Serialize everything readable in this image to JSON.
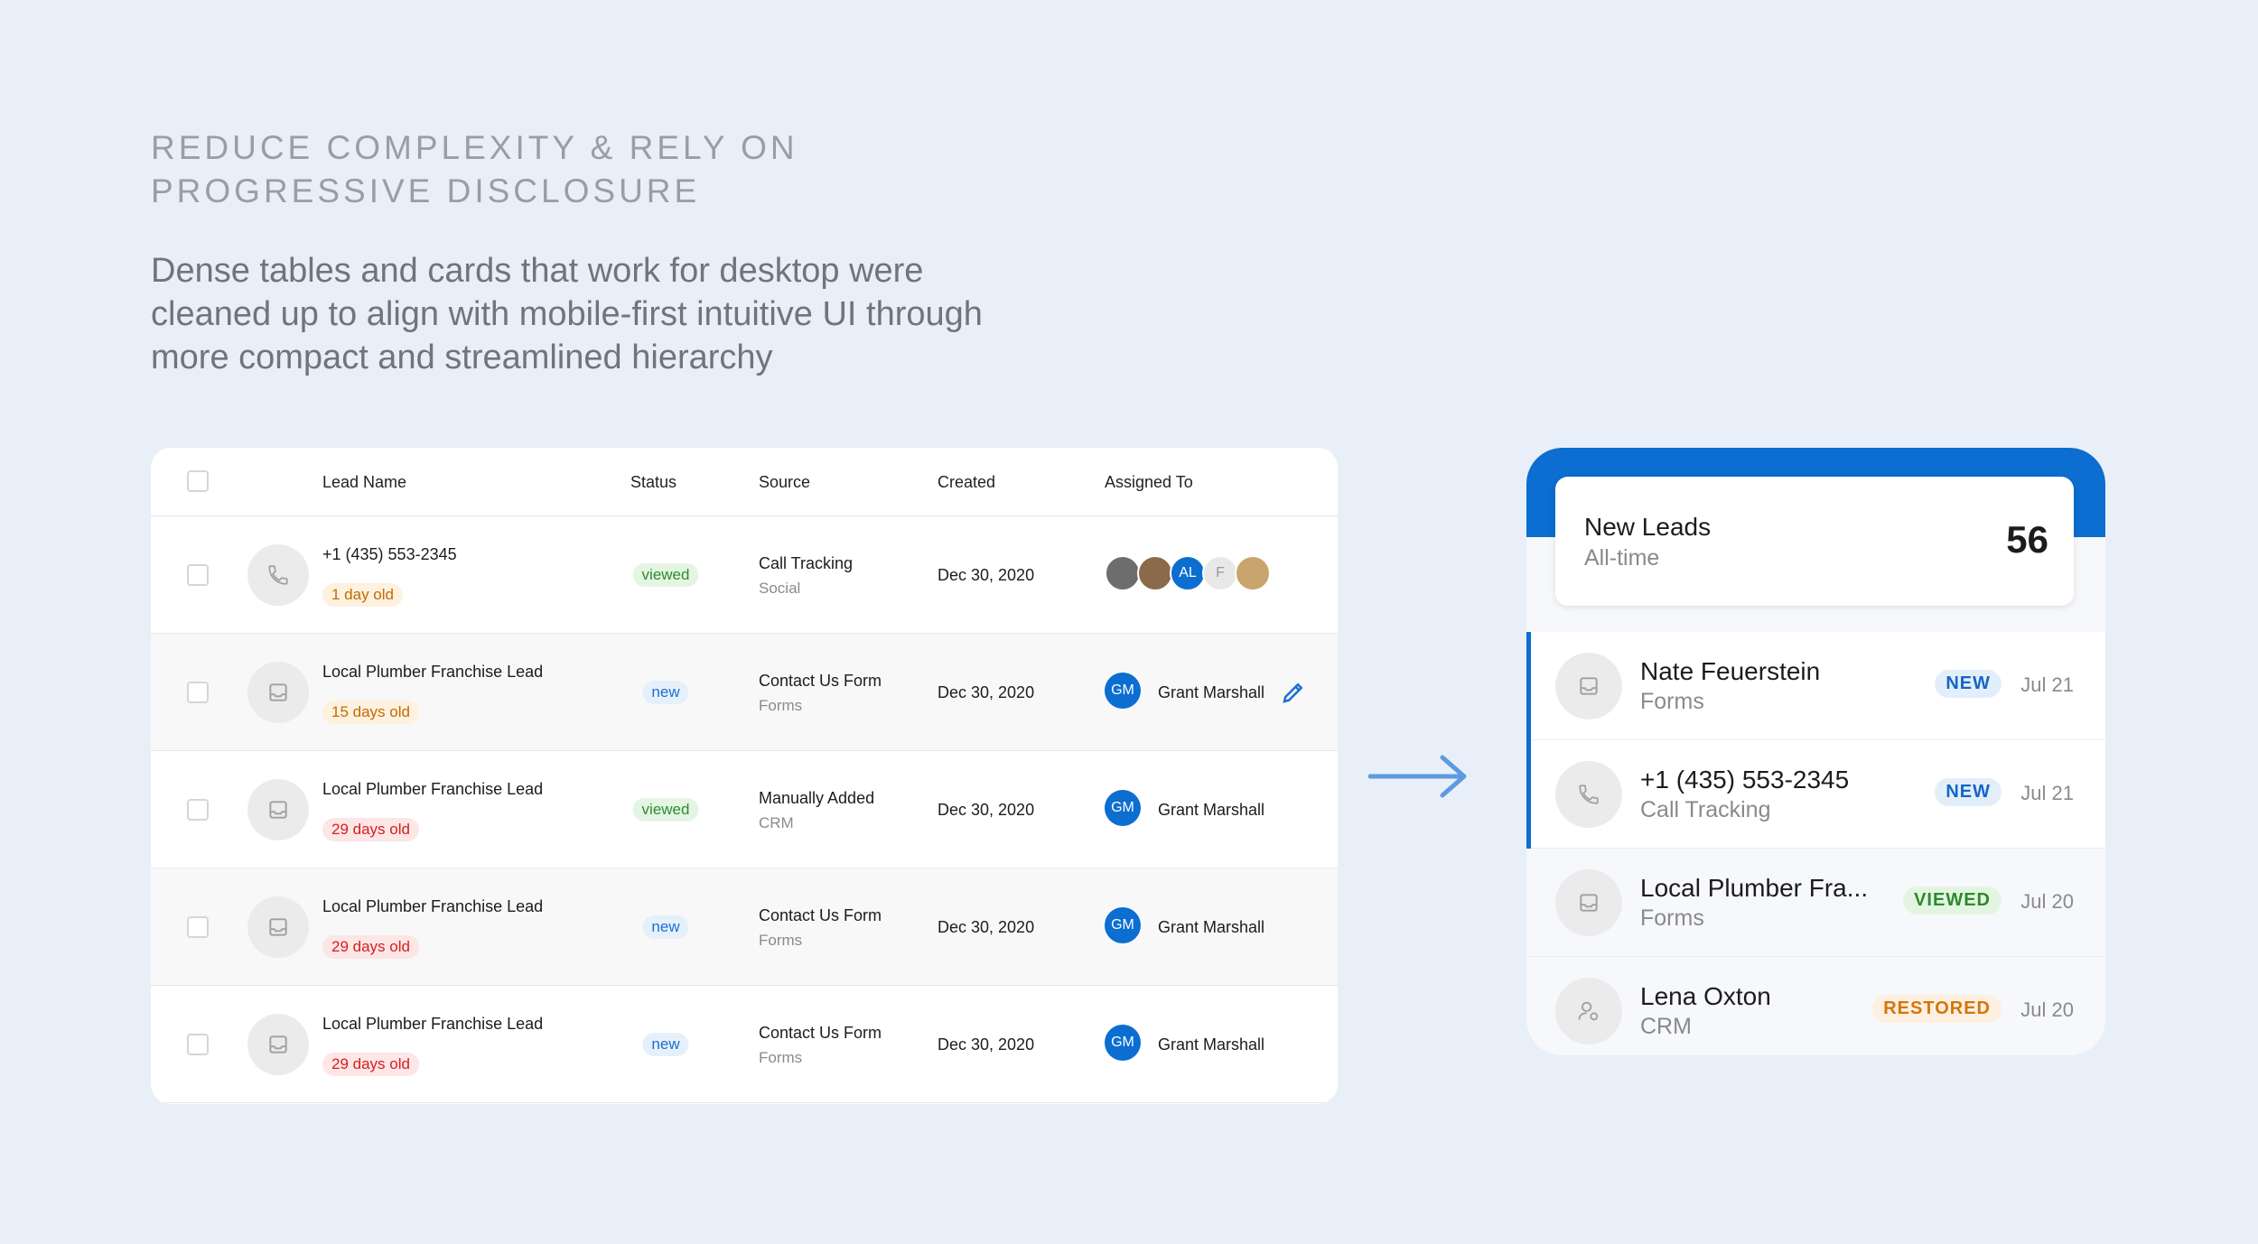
{
  "header": {
    "title_lines": [
      "REDUCE COMPLEXITY & RELY ON",
      "PROGRESSIVE DISCLOSURE"
    ],
    "description_lines": [
      "Dense tables and cards that work for desktop were",
      "cleaned up to align with mobile-first intuitive UI through",
      "more compact and streamlined hierarchy"
    ]
  },
  "table": {
    "columns": [
      "Lead Name",
      "Status",
      "Source",
      "Created",
      "Assigned To"
    ],
    "rows": [
      {
        "icon": "phone",
        "name": "+1 (435) 553-2345",
        "age": "1 day old",
        "age_tone": "warning",
        "status": "viewed",
        "source": "Call Tracking",
        "source_type": "Social",
        "created": "Dec 30, 2020",
        "assigned_initials": [
          "AL",
          "F"
        ]
      },
      {
        "icon": "inbox",
        "name": "Local Plumber Franchise Lead",
        "age": "15 days old",
        "age_tone": "warning",
        "status": "new",
        "source": "Contact Us Form",
        "source_type": "Forms",
        "created": "Dec 30, 2020",
        "assignee_initials": "GM",
        "assignee": "Grant Marshall",
        "editable": true
      },
      {
        "icon": "inbox",
        "name": "Local Plumber Franchise Lead",
        "age": "29 days old",
        "age_tone": "danger",
        "status": "viewed",
        "source": "Manually Added",
        "source_type": "CRM",
        "created": "Dec 30, 2020",
        "assignee_initials": "GM",
        "assignee": "Grant Marshall"
      },
      {
        "icon": "inbox",
        "name": "Local Plumber Franchise Lead",
        "age": "29 days old",
        "age_tone": "danger",
        "status": "new",
        "source": "Contact Us Form",
        "source_type": "Forms",
        "created": "Dec 30, 2020",
        "assignee_initials": "GM",
        "assignee": "Grant Marshall"
      },
      {
        "icon": "inbox",
        "name": "Local Plumber Franchise Lead",
        "age": "29 days old",
        "age_tone": "danger",
        "status": "new",
        "source": "Contact Us Form",
        "source_type": "Forms",
        "created": "Dec 30, 2020",
        "assignee_initials": "GM",
        "assignee": "Grant Marshall"
      }
    ]
  },
  "mobile": {
    "summary": {
      "title": "New Leads",
      "subtitle": "All-time",
      "count": "56"
    },
    "items": [
      {
        "icon": "inbox",
        "name": "Nate Feuerstein",
        "source": "Forms",
        "status": "NEW",
        "date": "Jul 21",
        "unread": true
      },
      {
        "icon": "phone",
        "name": "+1 (435) 553-2345",
        "source": "Call Tracking",
        "status": "NEW",
        "date": "Jul 21",
        "unread": true
      },
      {
        "icon": "inbox",
        "name": "Local Plumber Fra...",
        "source": "Forms",
        "status": "VIEWED",
        "date": "Jul 20",
        "unread": false
      },
      {
        "icon": "user",
        "name": "Lena Oxton",
        "source": "CRM",
        "status": "RESTORED",
        "date": "Jul 20",
        "unread": false
      }
    ]
  }
}
